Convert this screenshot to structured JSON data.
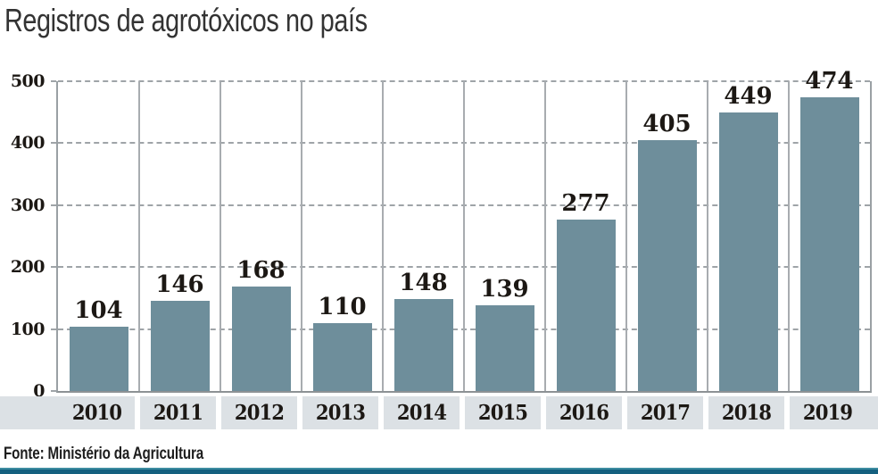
{
  "title": "Registros de agrotóxicos no país",
  "source": "Fonte: Ministério da Agricultura",
  "chart_data": {
    "type": "bar",
    "title": "Registros de agrotóxicos no país",
    "categories": [
      "2010",
      "2011",
      "2012",
      "2013",
      "2014",
      "2015",
      "2016",
      "2017",
      "2018",
      "2019"
    ],
    "values": [
      104,
      146,
      168,
      110,
      148,
      139,
      277,
      405,
      449,
      474
    ],
    "xlabel": "",
    "ylabel": "",
    "ylim": [
      0,
      500
    ],
    "yticks": [
      0,
      100,
      200,
      300,
      400,
      500
    ],
    "grid": "horizontal dashed gridlines + solid vertical column separators",
    "legend": "none",
    "value_labels": true,
    "source": "Fonte: Ministério da Agricultura"
  },
  "colors": {
    "bar": "#6e8e9b",
    "band_bg": "#dce1e5",
    "grid_dashed": "#9fa4a8",
    "col_separator": "#a8acb0",
    "axis_border": "#9aa0a4",
    "label_text": "#1c1814",
    "title_text": "#333333",
    "footer_bar_top": "#3d8ca0",
    "footer_bar_bottom": "#14607f"
  }
}
